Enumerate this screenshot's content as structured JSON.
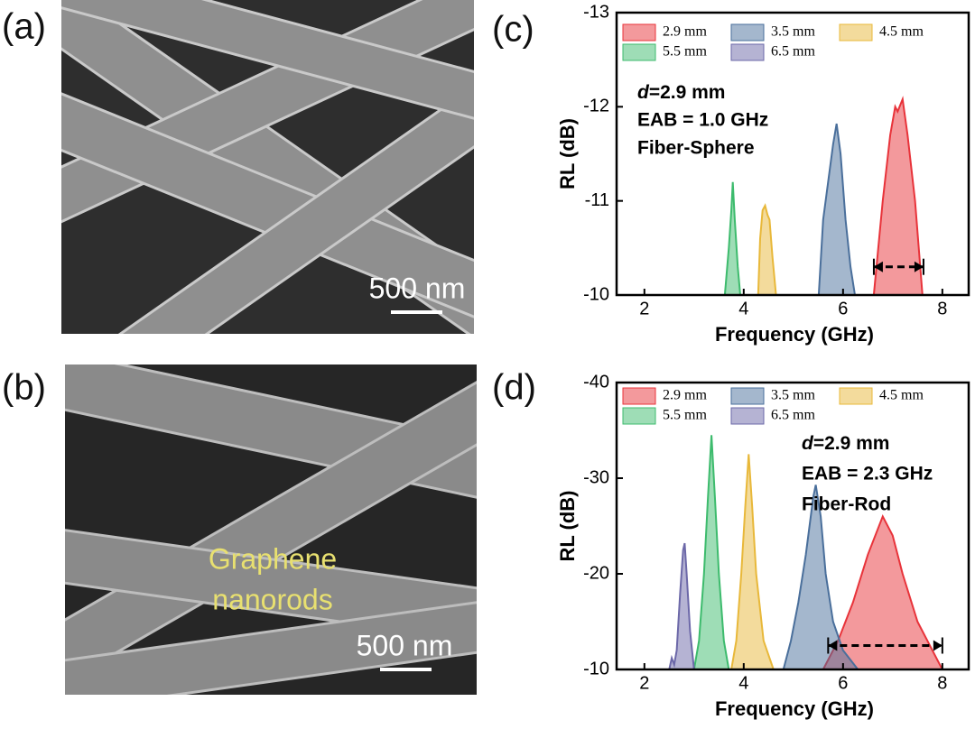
{
  "images": [
    {
      "panel": "(a)",
      "scale_bar": "500 nm"
    },
    {
      "panel": "(b)",
      "scale_bar": "500 nm",
      "annotation": [
        "Graphene",
        "nanorods"
      ]
    }
  ],
  "chart_data": [
    {
      "type": "area",
      "panel": "(c)",
      "x_label": "Frequency (GHz)",
      "y_label": "RL (dB)",
      "xlim": [
        1.44,
        8.53
      ],
      "xticks": [
        2,
        4,
        6,
        8
      ],
      "ylim": [
        -10,
        -13
      ],
      "yticks": [
        -10,
        -11,
        -12,
        -13
      ],
      "annotation": {
        "italic": "d",
        "text": "=2.9 mm",
        "lines": [
          "EAB = 1.0 GHz",
          "Fiber-Sphere"
        ]
      },
      "eab_arrow": {
        "x": [
          6.62,
          7.62
        ],
        "y": -10.3
      },
      "series": [
        {
          "name": "2.9 mm",
          "color": "#e8333a",
          "x": [
            6.62,
            6.8,
            6.95,
            7.05,
            7.1,
            7.2,
            7.3,
            7.45,
            7.6
          ],
          "values": [
            -10,
            -11.0,
            -11.7,
            -12.0,
            -11.95,
            -12.08,
            -11.7,
            -11.0,
            -10
          ]
        },
        {
          "name": "3.5 mm",
          "color": "#4a6f9b",
          "x": [
            5.51,
            5.6,
            5.7,
            5.8,
            5.87,
            5.95,
            6.05,
            6.15,
            6.24
          ],
          "values": [
            -10,
            -10.8,
            -11.2,
            -11.6,
            -11.82,
            -11.5,
            -10.8,
            -10.3,
            -10
          ]
        },
        {
          "name": "4.5 mm",
          "color": "#e8b83a",
          "x": [
            4.29,
            4.33,
            4.38,
            4.43,
            4.48,
            4.52,
            4.58,
            4.65
          ],
          "values": [
            -10,
            -10.6,
            -10.9,
            -10.95,
            -10.85,
            -10.8,
            -10.4,
            -10
          ]
        },
        {
          "name": "5.5 mm",
          "color": "#3dbb6d",
          "x": [
            3.62,
            3.7,
            3.75,
            3.78,
            3.82,
            3.88,
            3.93
          ],
          "values": [
            -10,
            -10.5,
            -10.9,
            -11.2,
            -10.8,
            -10.3,
            -10
          ]
        },
        {
          "name": "6.5 mm",
          "color": "#6c68a8",
          "x": [],
          "values": []
        }
      ]
    },
    {
      "type": "area",
      "panel": "(d)",
      "x_label": "Frequency (GHz)",
      "y_label": "RL (dB)",
      "xlim": [
        1.44,
        8.53
      ],
      "xticks": [
        2,
        4,
        6,
        8
      ],
      "ylim": [
        -10,
        -40
      ],
      "yticks": [
        -10,
        -20,
        -30,
        -40
      ],
      "annotation": {
        "italic": "d",
        "text": "=2.9 mm",
        "lines": [
          "EAB = 2.3 GHz",
          "Fiber-Rod"
        ]
      },
      "eab_arrow": {
        "x": [
          5.7,
          8.0
        ],
        "y": -12.5
      },
      "series": [
        {
          "name": "2.9 mm",
          "color": "#e8333a",
          "x": [
            5.6,
            5.9,
            6.2,
            6.5,
            6.8,
            7.0,
            7.2,
            7.5,
            7.8,
            8.0
          ],
          "values": [
            -10,
            -13,
            -17,
            -22,
            -26,
            -24,
            -20,
            -15,
            -12,
            -10
          ]
        },
        {
          "name": "3.5 mm",
          "color": "#4a6f9b",
          "x": [
            4.8,
            4.95,
            5.1,
            5.25,
            5.4,
            5.45,
            5.55,
            5.65,
            5.8,
            6.0,
            6.3
          ],
          "values": [
            -10,
            -13,
            -17,
            -22,
            -28,
            -29.3,
            -26,
            -20,
            -15,
            -12,
            -10
          ]
        },
        {
          "name": "4.5 mm",
          "color": "#e8b83a",
          "x": [
            3.75,
            3.85,
            3.95,
            4.03,
            4.1,
            4.17,
            4.25,
            4.4,
            4.6
          ],
          "values": [
            -10,
            -13,
            -20,
            -27,
            -32.5,
            -27,
            -20,
            -13,
            -10
          ]
        },
        {
          "name": "5.5 mm",
          "color": "#3dbb6d",
          "x": [
            3.0,
            3.1,
            3.2,
            3.28,
            3.35,
            3.42,
            3.5,
            3.6,
            3.7
          ],
          "values": [
            -10,
            -13,
            -20,
            -28,
            -34.5,
            -28,
            -20,
            -13,
            -10
          ]
        },
        {
          "name": "6.5 mm",
          "color": "#6c68a8",
          "x": [
            2.5,
            2.55,
            2.6,
            2.65,
            2.72,
            2.78,
            2.81,
            2.85,
            2.92,
            3.0
          ],
          "values": [
            -10,
            -11.2,
            -10.5,
            -12,
            -18,
            -22.5,
            -23.2,
            -20,
            -14,
            -10
          ]
        }
      ]
    }
  ]
}
